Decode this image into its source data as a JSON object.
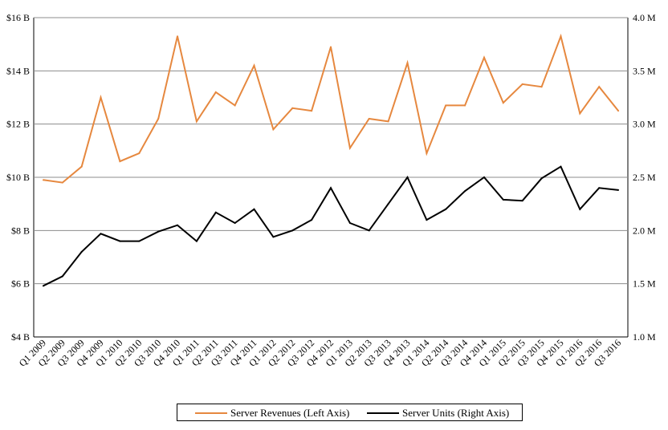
{
  "chart_data": {
    "type": "line",
    "categories": [
      "Q1 2009",
      "Q2 2009",
      "Q3 2009",
      "Q4 2009",
      "Q1 2010",
      "Q2 2010",
      "Q3 2010",
      "Q4 2010",
      "Q1 2011",
      "Q2 2011",
      "Q3 2011",
      "Q4 2011",
      "Q1 2012",
      "Q2 2012",
      "Q3 2012",
      "Q4 2012",
      "Q1 2013",
      "Q2 2013",
      "Q3 2013",
      "Q4 2013",
      "Q1 2014",
      "Q2 2014",
      "Q3 2014",
      "Q4 2014",
      "Q1 2015",
      "Q2 2015",
      "Q3 2015",
      "Q4 2015",
      "Q1 2016",
      "Q2 2016",
      "Q3 2016"
    ],
    "series": [
      {
        "name": "Server Revenues (Left Axis)",
        "axis": "left",
        "color": "#e6883f",
        "unit": "$B",
        "values": [
          9.9,
          9.8,
          10.4,
          13.0,
          10.6,
          10.9,
          12.2,
          15.3,
          12.1,
          13.2,
          12.7,
          14.2,
          11.8,
          12.6,
          12.5,
          14.9,
          11.1,
          12.2,
          12.1,
          14.3,
          10.9,
          12.7,
          12.7,
          14.5,
          12.8,
          13.5,
          13.4,
          15.3,
          12.4,
          13.4,
          12.5
        ]
      },
      {
        "name": "Server Units (Right Axis)",
        "axis": "right",
        "color": "#000000",
        "unit": "M",
        "values": [
          1.48,
          1.57,
          1.8,
          1.97,
          1.9,
          1.9,
          1.99,
          2.05,
          1.9,
          2.17,
          2.07,
          2.2,
          1.94,
          2.0,
          2.1,
          2.4,
          2.07,
          2.0,
          2.25,
          2.5,
          2.1,
          2.2,
          2.37,
          2.5,
          2.29,
          2.28,
          2.49,
          2.6,
          2.2,
          2.4,
          2.38
        ]
      }
    ],
    "y_left": {
      "ylim": [
        4,
        16
      ],
      "ticks": [
        4,
        6,
        8,
        10,
        12,
        14,
        16
      ],
      "tick_labels": [
        "$4 B",
        "$6 B",
        "$8 B",
        "$10 B",
        "$12 B",
        "$14 B",
        "$16 B"
      ]
    },
    "y_right": {
      "ylim": [
        1.0,
        4.0
      ],
      "ticks": [
        1.0,
        1.5,
        2.0,
        2.5,
        3.0,
        3.5,
        4.0
      ],
      "tick_labels": [
        "1.0 M",
        "1.5 M",
        "2.0 M",
        "2.5 M",
        "3.0 M",
        "3.5 M",
        "4.0 M"
      ]
    },
    "grid": "horizontal",
    "legend": "bottom-center",
    "title": "",
    "xlabel": "",
    "ylabel": ""
  }
}
